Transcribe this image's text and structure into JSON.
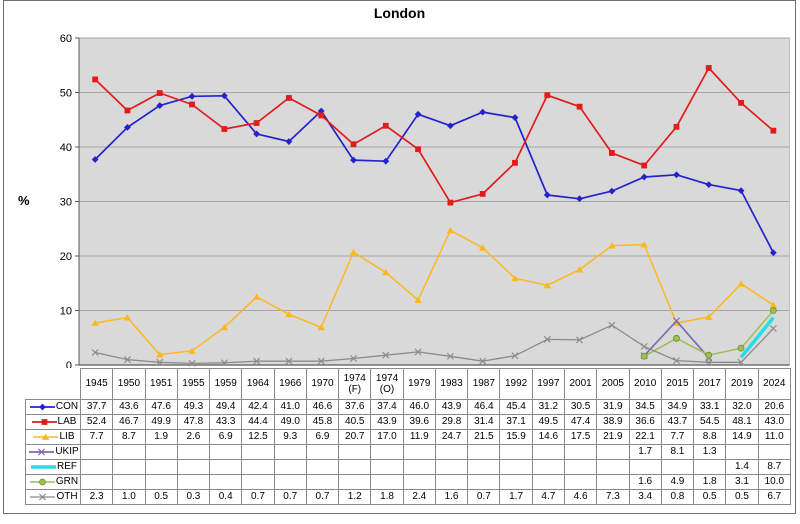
{
  "title": "London",
  "ylabel": "%",
  "chart_data": {
    "type": "line",
    "title": "London",
    "xlabel": "",
    "ylabel": "%",
    "ylim": [
      0,
      60
    ],
    "y_ticks": [
      0,
      10,
      20,
      30,
      40,
      50,
      60
    ],
    "grid": true,
    "legend_position": "table-left",
    "colors": {
      "plot_background": "#d9d9d9",
      "gridline": "#a6a6a6",
      "axis": "#595959",
      "table_border": "#8a8a8a"
    },
    "categories": [
      "1945",
      "1950",
      "1951",
      "1955",
      "1959",
      "1964",
      "1966",
      "1970",
      "1974 (F)",
      "1974 (O)",
      "1979",
      "1983",
      "1987",
      "1992",
      "1997",
      "2001",
      "2005",
      "2010",
      "2015",
      "2017",
      "2019",
      "2024"
    ],
    "series": [
      {
        "name": "CON",
        "color": "#2323ce",
        "marker": "diamond",
        "line_width": 1.7,
        "values": [
          37.7,
          43.6,
          47.6,
          49.3,
          49.4,
          42.4,
          41.0,
          46.6,
          37.6,
          37.4,
          46.0,
          43.9,
          46.4,
          45.4,
          31.2,
          30.5,
          31.9,
          34.5,
          34.9,
          33.1,
          32.0,
          20.6
        ]
      },
      {
        "name": "LAB",
        "color": "#e21b1b",
        "marker": "square",
        "line_width": 1.7,
        "values": [
          52.4,
          46.7,
          49.9,
          47.8,
          43.3,
          44.4,
          49.0,
          45.8,
          40.5,
          43.9,
          39.6,
          29.8,
          31.4,
          37.1,
          49.5,
          47.4,
          38.9,
          36.6,
          43.7,
          54.5,
          48.1,
          43.0
        ]
      },
      {
        "name": "LIB",
        "color": "#ffb81c",
        "marker": "triangle",
        "line_width": 1.5,
        "values": [
          7.7,
          8.7,
          1.9,
          2.6,
          6.9,
          12.5,
          9.3,
          6.9,
          20.7,
          17.0,
          11.9,
          24.7,
          21.5,
          15.9,
          14.6,
          17.5,
          21.9,
          22.1,
          7.7,
          8.8,
          14.9,
          11.0
        ]
      },
      {
        "name": "UKIP",
        "color": "#8468ae",
        "marker": "x",
        "line_width": 1.7,
        "values": [
          null,
          null,
          null,
          null,
          null,
          null,
          null,
          null,
          null,
          null,
          null,
          null,
          null,
          null,
          null,
          null,
          null,
          1.7,
          8.1,
          1.3,
          null,
          null
        ]
      },
      {
        "name": "REF",
        "color": "#29dde8",
        "marker": "none",
        "line_width": 3.5,
        "values": [
          null,
          null,
          null,
          null,
          null,
          null,
          null,
          null,
          null,
          null,
          null,
          null,
          null,
          null,
          null,
          null,
          null,
          null,
          null,
          null,
          1.4,
          8.7
        ]
      },
      {
        "name": "GRN",
        "color": "#9cc054",
        "marker": "circle",
        "line_width": 1.5,
        "values": [
          null,
          null,
          null,
          null,
          null,
          null,
          null,
          null,
          null,
          null,
          null,
          null,
          null,
          null,
          null,
          null,
          null,
          1.6,
          4.9,
          1.8,
          3.1,
          10.0
        ]
      },
      {
        "name": "OTH",
        "color": "#8c8c8c",
        "marker": "x",
        "line_width": 1.3,
        "values": [
          2.3,
          1.0,
          0.5,
          0.3,
          0.4,
          0.7,
          0.7,
          0.7,
          1.2,
          1.8,
          2.4,
          1.6,
          0.7,
          1.7,
          4.7,
          4.6,
          7.3,
          3.4,
          0.8,
          0.5,
          0.5,
          6.7
        ]
      }
    ]
  }
}
